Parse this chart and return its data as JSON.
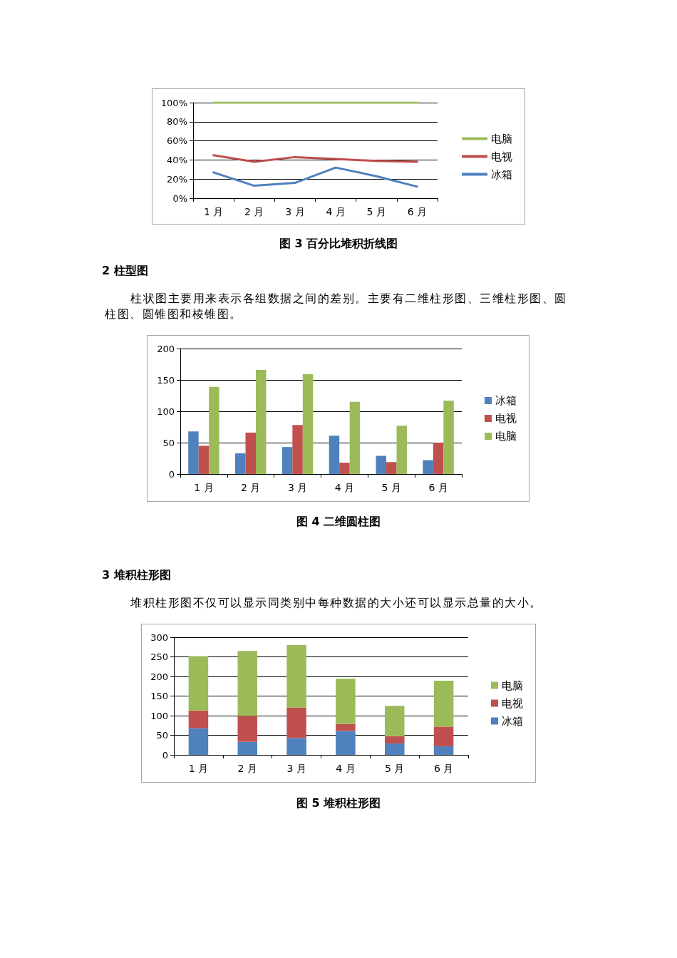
{
  "chart_data": [
    {
      "type": "line",
      "title": "图 3 百分比堆积折线图",
      "categories": [
        "1 月",
        "2 月",
        "3 月",
        "4 月",
        "5 月",
        "6 月"
      ],
      "series": [
        {
          "name": "电脑",
          "color": "#9bbb59",
          "values": [
            100,
            100,
            100,
            100,
            100,
            100
          ]
        },
        {
          "name": "电视",
          "color": "#c0504d",
          "values": [
            45,
            38,
            43,
            41,
            39,
            38
          ]
        },
        {
          "name": "冰箱",
          "color": "#4f81bd",
          "values": [
            27,
            13,
            16,
            32,
            23,
            12
          ]
        }
      ],
      "ylim": [
        0,
        100
      ],
      "yticks": [
        {
          "value": 0,
          "label": "0%"
        },
        {
          "value": 20,
          "label": "20%"
        },
        {
          "value": 40,
          "label": "40%"
        },
        {
          "value": 60,
          "label": "60%"
        },
        {
          "value": 80,
          "label": "80%"
        },
        {
          "value": 100,
          "label": "100%"
        }
      ],
      "grid": "y",
      "legend": "right",
      "marker": "none"
    },
    {
      "type": "bar",
      "title": "图 4 二维圆柱图",
      "annotations": [
        "2 柱型图",
        "柱状图主要用来表示各组数据之间的差别。主要有二维柱形图、三维柱形图、圆柱图、圆锥图和棱锥图。"
      ],
      "categories": [
        "1 月",
        "2 月",
        "3 月",
        "4 月",
        "5 月",
        "6 月"
      ],
      "series": [
        {
          "name": "冰箱",
          "color": "#4f81bd",
          "values": [
            68,
            33,
            43,
            61,
            29,
            22
          ]
        },
        {
          "name": "电视",
          "color": "#c0504d",
          "values": [
            45,
            66,
            78,
            18,
            19,
            50
          ]
        },
        {
          "name": "电脑",
          "color": "#9bbb59",
          "values": [
            139,
            166,
            159,
            115,
            77,
            117
          ]
        }
      ],
      "ylim": [
        0,
        200
      ],
      "yticks": [
        0,
        50,
        100,
        150,
        200
      ],
      "grid": "y",
      "legend": "right"
    },
    {
      "type": "bar",
      "title": "图 5 堆积柱形图",
      "annotations": [
        "3 堆积柱形图",
        "堆积柱形图不仅可以显示同类别中每种数据的大小还可以显示总量的大小。"
      ],
      "categories": [
        "1 月",
        "2 月",
        "3 月",
        "4 月",
        "5 月",
        "6 月"
      ],
      "series": [
        {
          "name": "冰箱",
          "color": "#4f81bd",
          "values": [
            68,
            33,
            43,
            61,
            29,
            22
          ]
        },
        {
          "name": "电视",
          "color": "#c0504d",
          "values": [
            45,
            66,
            78,
            18,
            19,
            50
          ]
        },
        {
          "name": "电脑",
          "color": "#9bbb59",
          "values": [
            139,
            166,
            159,
            115,
            77,
            117
          ]
        }
      ],
      "stacked": true,
      "ylim": [
        0,
        300
      ],
      "yticks": [
        0,
        50,
        100,
        150,
        200,
        250,
        300
      ],
      "grid": "y",
      "legend": "right"
    }
  ]
}
